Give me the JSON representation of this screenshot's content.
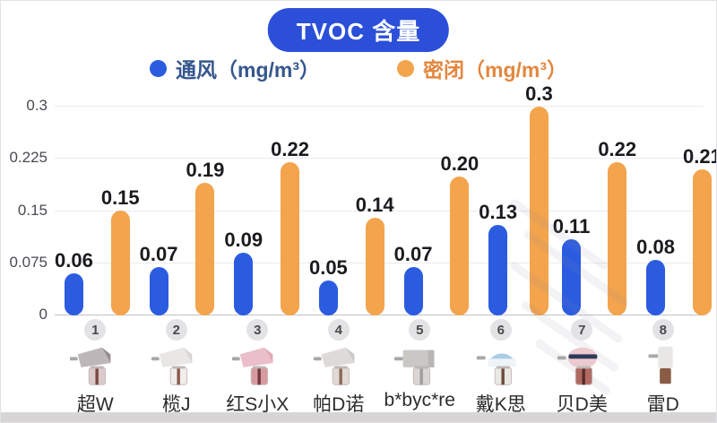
{
  "title": "TVOC 含量",
  "legend": [
    {
      "label": "通风（mg/m³）",
      "swatch_color": "#2b5ce0",
      "text_color": "#35578e"
    },
    {
      "label": "密闭（mg/m³）",
      "swatch_color": "#f3a44c",
      "text_color": "#e2873f"
    }
  ],
  "chart_data": {
    "type": "bar",
    "title": "TVOC 含量",
    "categories": [
      "超W",
      "榄J",
      "红S小X",
      "帕D诺",
      "b*byc*re",
      "戴K思",
      "贝D美",
      "雷D"
    ],
    "category_numbers": [
      "1",
      "2",
      "3",
      "4",
      "5",
      "6",
      "7",
      "8"
    ],
    "series": [
      {
        "name": "通风（mg/m³）",
        "color": "#2b5ce0",
        "values": [
          0.06,
          0.07,
          0.09,
          0.05,
          0.07,
          0.13,
          0.11,
          0.08
        ],
        "labels": [
          "0.06",
          "0.07",
          "0.09",
          "0.05",
          "0.07",
          "0.13",
          "0.11",
          "0.08"
        ]
      },
      {
        "name": "密闭（mg/m³）",
        "color": "#f3a44c",
        "values": [
          0.15,
          0.19,
          0.22,
          0.14,
          0.2,
          0.3,
          0.22,
          0.21
        ],
        "labels": [
          "0.15",
          "0.19",
          "0.22",
          "0.14",
          "0.20",
          "0.3",
          "0.22",
          "0.21"
        ]
      }
    ],
    "ylabel": "",
    "xlabel": "",
    "ylim": [
      0,
      0.3
    ],
    "yticks": [
      {
        "value": 0,
        "label": "0"
      },
      {
        "value": 0.075,
        "label": "0.075"
      },
      {
        "value": 0.15,
        "label": "0.15"
      },
      {
        "value": 0.225,
        "label": "0.225"
      },
      {
        "value": 0.3,
        "label": "0.3"
      }
    ],
    "grid": true,
    "legend_position": "top"
  }
}
